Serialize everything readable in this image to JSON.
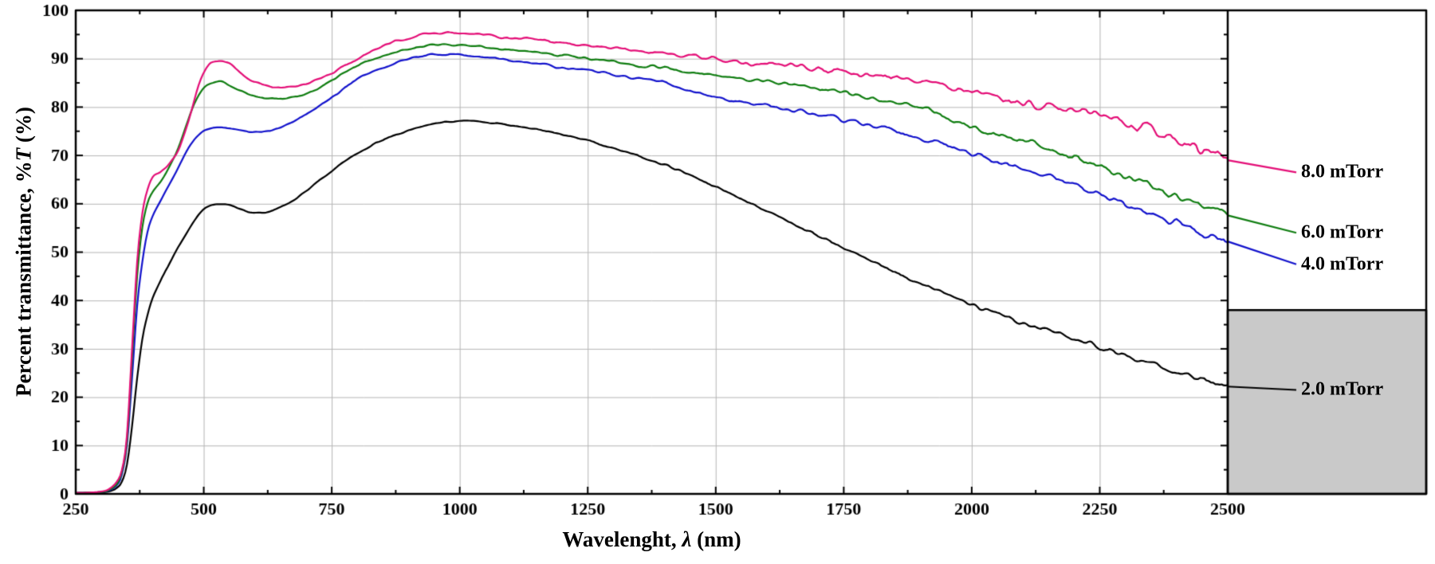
{
  "figure": {
    "background": "#ffffff",
    "frame_color": "#000000",
    "grid_color": "#b5b5b5",
    "tick_color": "#000000",
    "text_color": "#000000"
  },
  "chart_data": {
    "type": "line",
    "title": "",
    "xlabel": "Wavelenght, λ (nm)",
    "xlabel_parts": {
      "prefix": "Wavelenght, ",
      "symbol": "λ",
      "suffix": " (nm)"
    },
    "ylabel": "Percent transmittance, %T (%)",
    "ylabel_parts": {
      "prefix": "Percent transmittance, %",
      "symbol": "T",
      "suffix": " (%)"
    },
    "xlim": [
      250,
      2500
    ],
    "ylim": [
      0,
      100
    ],
    "x_major_ticks": [
      250,
      500,
      750,
      1000,
      1250,
      1500,
      1750,
      2000,
      2250,
      2500
    ],
    "x_minor_step": 125,
    "y_major_ticks": [
      0,
      10,
      20,
      30,
      40,
      50,
      60,
      70,
      80,
      90,
      100
    ],
    "y_minor_step": 5,
    "grid": true,
    "legend_position": "right-outside",
    "annotation_box": {
      "x_from_value": 2500,
      "y_top_value": 38,
      "fill": "#c9c9c9"
    },
    "x": [
      250,
      280,
      300,
      315,
      330,
      340,
      350,
      360,
      370,
      380,
      390,
      400,
      415,
      430,
      450,
      470,
      490,
      510,
      530,
      550,
      570,
      590,
      610,
      630,
      650,
      675,
      700,
      725,
      750,
      800,
      850,
      900,
      950,
      1000,
      1050,
      1100,
      1150,
      1200,
      1250,
      1300,
      1350,
      1400,
      1450,
      1500,
      1550,
      1600,
      1650,
      1700,
      1750,
      1800,
      1850,
      1900,
      1950,
      2000,
      2050,
      2100,
      2150,
      2200,
      2250,
      2300,
      2350,
      2400,
      2450,
      2500
    ],
    "series": [
      {
        "name": "8.0 mTorr",
        "color": "#e40e77",
        "label_value": 66.5,
        "noise_base": 0.25,
        "noise_end": 2.6,
        "values": [
          0.2,
          0.3,
          0.5,
          1,
          2.5,
          5,
          12,
          30,
          48,
          58,
          63,
          65.5,
          66.5,
          68,
          71,
          77,
          84.5,
          88.8,
          89.6,
          89,
          87.3,
          85.8,
          84.8,
          84.2,
          84,
          84.2,
          84.8,
          85.8,
          87,
          90,
          92.6,
          94.3,
          95.3,
          95.4,
          94.9,
          94.4,
          94,
          93.3,
          92.7,
          92.2,
          91.7,
          91.2,
          90.5,
          89.8,
          89.3,
          88.9,
          88.4,
          87.9,
          87.3,
          86.6,
          86.2,
          85.6,
          84.2,
          82.7,
          81.9,
          81.2,
          80.2,
          79.1,
          77.9,
          76.4,
          74.8,
          73,
          71,
          69
        ]
      },
      {
        "name": "6.0 mTorr",
        "color": "#0f7d10",
        "label_value": 54,
        "noise_base": 0.25,
        "noise_end": 1.7,
        "values": [
          0.2,
          0.3,
          0.4,
          0.8,
          2,
          4.5,
          11,
          28,
          45,
          55,
          60,
          62.5,
          64.5,
          67,
          71.5,
          77.5,
          82.5,
          84.8,
          85.3,
          84.6,
          83.4,
          82.5,
          82,
          81.8,
          81.8,
          82.1,
          82.8,
          84,
          85.5,
          88.5,
          90.6,
          92,
          92.9,
          92.8,
          92.3,
          91.8,
          91.3,
          90.6,
          90,
          89.4,
          88.7,
          88.1,
          87.3,
          86.5,
          85.9,
          85.2,
          84.5,
          83.8,
          82.9,
          81.9,
          80.9,
          79.8,
          78.2,
          75.8,
          74.3,
          72.9,
          71.3,
          69.6,
          67.7,
          65.6,
          63.5,
          61.4,
          59.4,
          57.6
        ]
      },
      {
        "name": "4.0 mTorr",
        "color": "#1212cc",
        "label_value": 47.5,
        "noise_base": 0.25,
        "noise_end": 1.7,
        "values": [
          0.2,
          0.3,
          0.4,
          0.7,
          1.8,
          4,
          10,
          24,
          39,
          48,
          54,
          57.5,
          60.5,
          63.5,
          67.5,
          71.5,
          74.3,
          75.5,
          75.8,
          75.6,
          75.2,
          74.9,
          74.8,
          75.1,
          75.8,
          77,
          78.5,
          80.2,
          82,
          85.7,
          88.2,
          89.9,
          90.8,
          90.8,
          90.2,
          89.6,
          89,
          88.2,
          87.5,
          86.7,
          85.9,
          85,
          83.6,
          82,
          81,
          80.2,
          79.4,
          78.5,
          77.5,
          76.3,
          75,
          73.6,
          72.1,
          70.5,
          68.9,
          67.3,
          65.7,
          63.9,
          62,
          60,
          58,
          56,
          54,
          52.2
        ]
      },
      {
        "name": "2.0 mTorr",
        "color": "#000000",
        "label_value": 21.5,
        "noise_base": 0.2,
        "noise_end": 1.1,
        "values": [
          0.1,
          0.2,
          0.3,
          0.5,
          1.2,
          2.5,
          6,
          14,
          24,
          32,
          37,
          40.5,
          44,
          47,
          51,
          54.5,
          57.8,
          59.5,
          60,
          59.7,
          59,
          58.3,
          58.1,
          58.4,
          59.3,
          60.8,
          62.7,
          64.8,
          66.8,
          70.5,
          73.2,
          75.2,
          76.6,
          77.1,
          76.9,
          76.3,
          75.4,
          74.3,
          73,
          71.5,
          69.9,
          68.1,
          65.9,
          63.4,
          60.9,
          58.4,
          55.9,
          53.4,
          50.9,
          48.4,
          45.9,
          43.5,
          41.3,
          39.2,
          37.2,
          35.4,
          33.7,
          32,
          30.3,
          28.6,
          26.9,
          25.3,
          23.7,
          22.2
        ]
      }
    ]
  }
}
